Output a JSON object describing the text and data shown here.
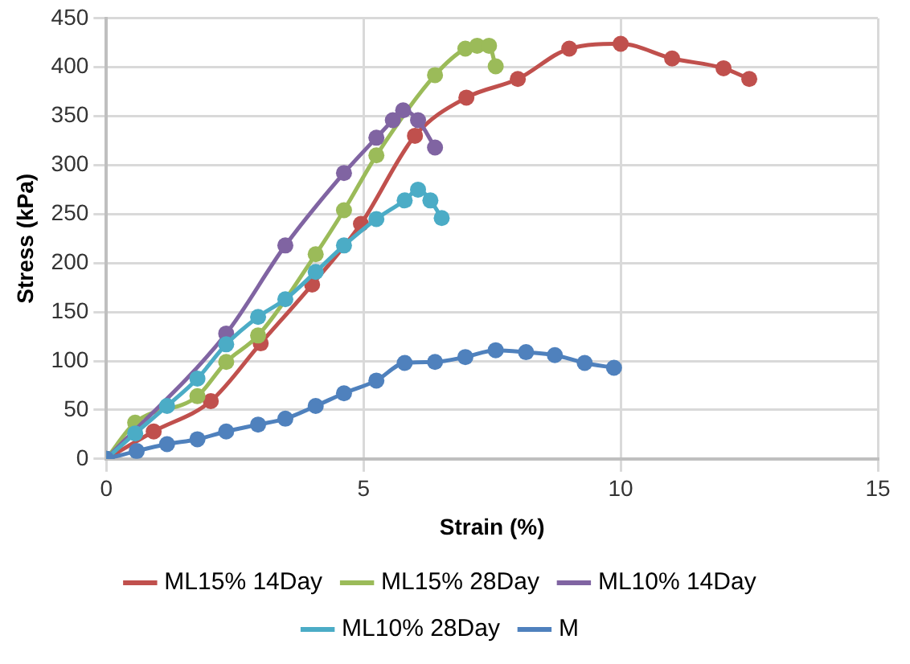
{
  "chart_data": {
    "type": "line",
    "xlabel": "Strain (%)",
    "ylabel": "Stress (kPa)",
    "xlim": [
      0,
      15
    ],
    "xticks": [
      0,
      5,
      10,
      15
    ],
    "ylim": [
      0,
      450
    ],
    "yticks": [
      0,
      50,
      100,
      150,
      200,
      250,
      300,
      350,
      400,
      450
    ],
    "grid": true,
    "legend": "bottom",
    "marker": "circle",
    "line_style": "solid",
    "series": [
      {
        "name": "ML15% 14Day",
        "color": "#c0504d",
        "x": [
          0,
          0.92,
          2.03,
          3.0,
          4.0,
          4.95,
          6.0,
          7.0,
          8.0,
          9.0,
          10.0,
          11.0,
          12.0,
          12.5
        ],
        "values": [
          0,
          28,
          59,
          118,
          178,
          240,
          330,
          369,
          388,
          419,
          424,
          409,
          399,
          388
        ]
      },
      {
        "name": "ML15% 28Day",
        "color": "#9bbb59",
        "x": [
          0,
          0.56,
          1.77,
          2.33,
          2.95,
          4.07,
          4.62,
          5.25,
          6.39,
          6.98,
          7.21,
          7.44,
          7.57
        ],
        "values": [
          0,
          37,
          64,
          99,
          126,
          209,
          254,
          310,
          392,
          419,
          422,
          422,
          401
        ]
      },
      {
        "name": "ML10% 14Day",
        "color": "#8064a2",
        "x": [
          0,
          2.33,
          3.48,
          4.62,
          5.25,
          5.57,
          5.77,
          6.06,
          6.39
        ],
        "values": [
          0,
          128,
          218,
          292,
          328,
          346,
          356,
          346,
          318
        ]
      },
      {
        "name": "ML10% 28Day",
        "color": "#4bacc6",
        "x": [
          0,
          0.56,
          1.18,
          1.77,
          2.33,
          2.95,
          3.48,
          4.07,
          4.62,
          5.25,
          5.8,
          6.06,
          6.3,
          6.52
        ],
        "values": [
          0,
          26,
          54,
          82,
          117,
          145,
          163,
          191,
          218,
          245,
          264,
          275,
          264,
          246
        ]
      },
      {
        "name": "M",
        "color": "#4f81bd",
        "x": [
          0,
          0.59,
          1.18,
          1.77,
          2.33,
          2.95,
          3.48,
          4.07,
          4.62,
          5.25,
          5.8,
          6.39,
          6.98,
          7.57,
          8.16,
          8.72,
          9.3,
          9.87
        ],
        "values": [
          0,
          8,
          15,
          20,
          28,
          35,
          41,
          54,
          67,
          80,
          98,
          99,
          104,
          111,
          109,
          106,
          98,
          93
        ]
      }
    ]
  }
}
